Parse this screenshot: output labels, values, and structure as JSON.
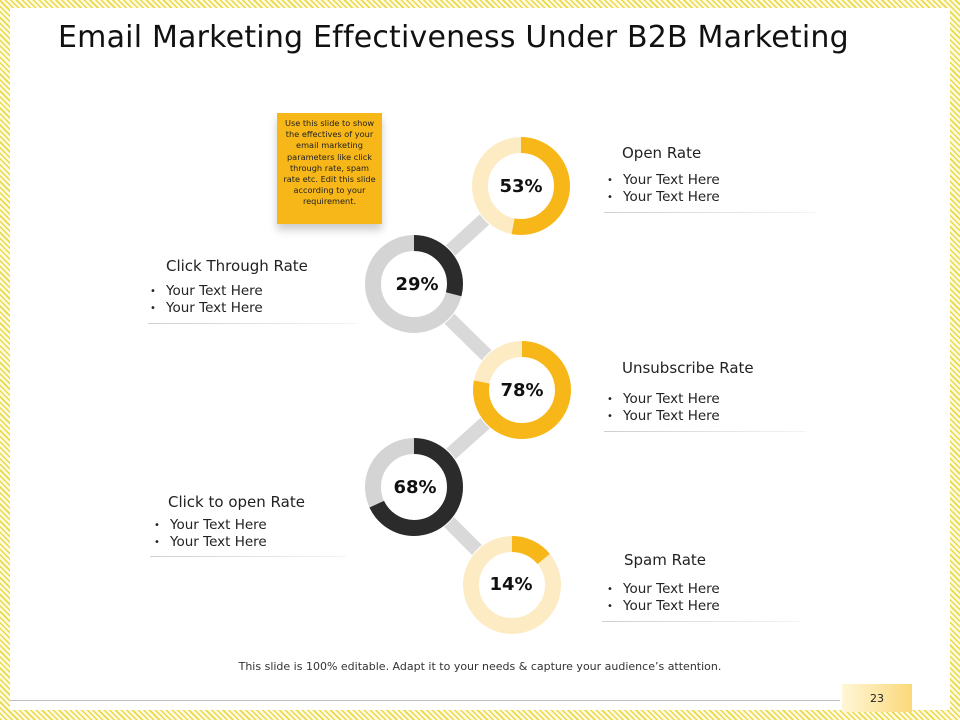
{
  "title": "Email Marketing Effectiveness Under B2B Marketing",
  "note": "Use this slide to show the effectives of your email marketing parameters  like click through rate, spam rate etc. Edit this slide according to your requirement.",
  "colors": {
    "accent": "#f7b718",
    "dark": "#2b2b2b",
    "grey_track": "#d4d4d4",
    "light_track": "#fdebc4",
    "connector": "#d9d9d9"
  },
  "chart_data": {
    "type": "donut-chain",
    "metrics": [
      {
        "name": "Open Rate",
        "value": 53,
        "label": "53%",
        "bullets": [
          "Your Text Here",
          "Your Text Here"
        ],
        "fill": "#f7b718",
        "track": "#fdebc4"
      },
      {
        "name": "Click Through Rate",
        "value": 29,
        "label": "29%",
        "bullets": [
          "Your Text Here",
          "Your Text Here"
        ],
        "fill": "#2b2b2b",
        "track": "#d4d4d4"
      },
      {
        "name": "Unsubscribe Rate",
        "value": 78,
        "label": "78%",
        "bullets": [
          "Your Text Here",
          "Your Text Here"
        ],
        "fill": "#f7b718",
        "track": "#fdebc4"
      },
      {
        "name": "Click to open Rate",
        "value": 68,
        "label": "68%",
        "bullets": [
          "Your Text Here",
          "Your Text Here"
        ],
        "fill": "#2b2b2b",
        "track": "#d4d4d4"
      },
      {
        "name": "Spam Rate",
        "value": 14,
        "label": "14%",
        "bullets": [
          "Your Text Here",
          "Your Text Here"
        ],
        "fill": "#f7b718",
        "track": "#fdebc4"
      }
    ]
  },
  "footer": "This slide is 100% editable. Adapt it to your needs & capture your audience’s attention.",
  "page_number": "23"
}
